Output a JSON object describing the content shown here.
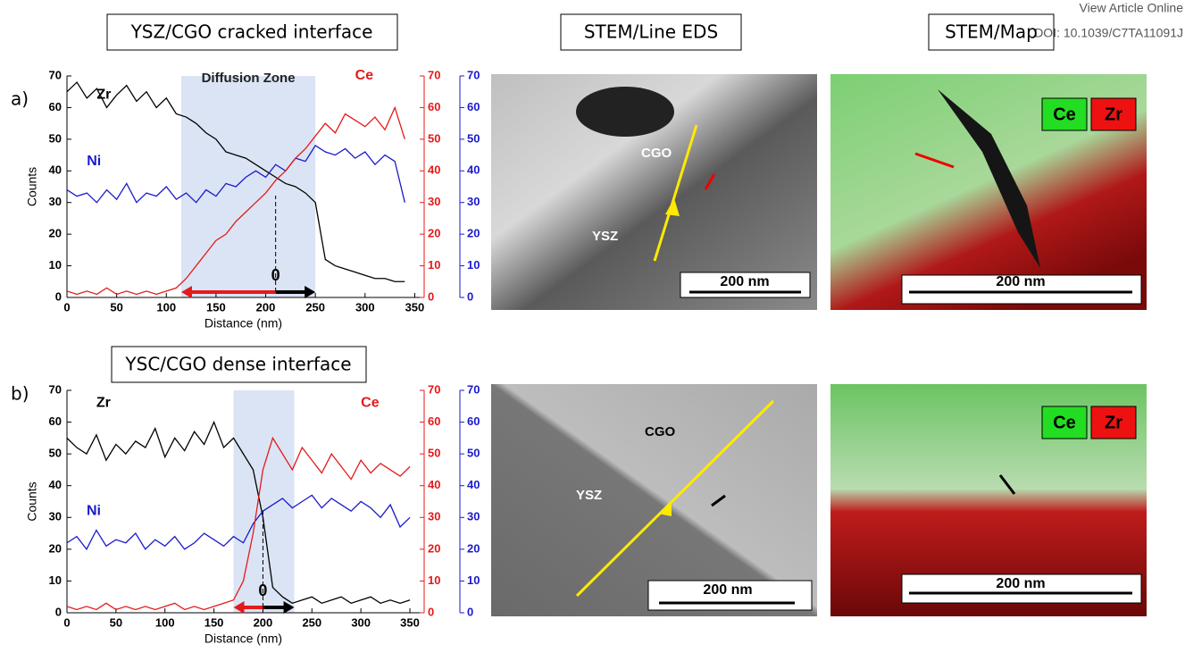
{
  "header": {
    "view": "View Article Online",
    "doi": "DOI: 10.1039/C7TA11091J"
  },
  "columns": {
    "line_eds": "STEM/Line EDS",
    "map": "STEM/Map"
  },
  "rows": [
    {
      "label": "a)",
      "title": "YSZ/CGO cracked interface"
    },
    {
      "label": "b)",
      "title": "YSC/CGO dense interface"
    }
  ],
  "images": {
    "cgo": "CGO",
    "ysz": "YSZ",
    "scale": "200 nm",
    "ce": "Ce",
    "zr": "Zr"
  },
  "chart_data": [
    {
      "type": "line",
      "xlabel": "Distance (nm)",
      "ylabel": "Counts",
      "xlim": [
        0,
        355
      ],
      "xticks": [
        0,
        50,
        100,
        150,
        200,
        250,
        300,
        350
      ],
      "ylim": [
        0,
        70
      ],
      "yticks": [
        0,
        10,
        20,
        30,
        40,
        50,
        60,
        70
      ],
      "y2lim": [
        0,
        70
      ],
      "y2ticks": [
        0,
        10,
        20,
        30,
        40,
        50,
        60,
        70
      ],
      "y3lim": [
        0,
        70
      ],
      "y3ticks": [
        0,
        10,
        20,
        30,
        40,
        50,
        60,
        70
      ],
      "zone": "Diffusion Zone",
      "zero": "0",
      "shade": [
        115,
        250
      ],
      "zero_x": 210,
      "x": [
        0,
        10,
        20,
        30,
        40,
        50,
        60,
        70,
        80,
        90,
        100,
        110,
        120,
        130,
        140,
        150,
        160,
        170,
        180,
        190,
        200,
        210,
        220,
        230,
        240,
        250,
        260,
        270,
        280,
        290,
        300,
        310,
        320,
        330,
        340
      ],
      "series": [
        {
          "name": "Zr",
          "color": "#000000",
          "values": [
            65,
            68,
            63,
            66,
            60,
            64,
            67,
            62,
            65,
            60,
            63,
            58,
            57,
            55,
            52,
            50,
            46,
            45,
            44,
            42,
            40,
            38,
            36,
            35,
            33,
            30,
            12,
            10,
            9,
            8,
            7,
            6,
            6,
            5,
            5
          ]
        },
        {
          "name": "Ni",
          "color": "#1a1acc",
          "axis": "y3",
          "values": [
            34,
            32,
            33,
            30,
            34,
            31,
            36,
            30,
            33,
            32,
            35,
            31,
            33,
            30,
            34,
            32,
            36,
            35,
            38,
            40,
            38,
            42,
            40,
            44,
            43,
            48,
            46,
            45,
            47,
            44,
            46,
            42,
            45,
            43,
            30
          ]
        },
        {
          "name": "Ce",
          "color": "#e41a1a",
          "axis": "y2",
          "values": [
            2,
            1,
            2,
            1,
            3,
            1,
            2,
            1,
            2,
            1,
            2,
            3,
            6,
            10,
            14,
            18,
            20,
            24,
            27,
            30,
            33,
            37,
            40,
            44,
            47,
            51,
            55,
            52,
            58,
            56,
            54,
            57,
            53,
            60,
            50
          ]
        }
      ]
    },
    {
      "type": "line",
      "xlabel": "Distance (nm)",
      "ylabel": "Counts",
      "xlim": [
        0,
        360
      ],
      "xticks": [
        0,
        50,
        100,
        150,
        200,
        250,
        300,
        350
      ],
      "ylim": [
        0,
        70
      ],
      "yticks": [
        0,
        10,
        20,
        30,
        40,
        50,
        60,
        70
      ],
      "y2lim": [
        0,
        70
      ],
      "y2ticks": [
        0,
        10,
        20,
        30,
        40,
        50,
        60,
        70
      ],
      "y3lim": [
        0,
        70
      ],
      "y3ticks": [
        0,
        10,
        20,
        30,
        40,
        50,
        60,
        70
      ],
      "zero": "0",
      "shade": [
        170,
        232
      ],
      "zero_x": 200,
      "x": [
        0,
        10,
        20,
        30,
        40,
        50,
        60,
        70,
        80,
        90,
        100,
        110,
        120,
        130,
        140,
        150,
        160,
        170,
        180,
        190,
        200,
        210,
        220,
        230,
        240,
        250,
        260,
        270,
        280,
        290,
        300,
        310,
        320,
        330,
        340,
        350
      ],
      "series": [
        {
          "name": "Zr",
          "color": "#000000",
          "values": [
            55,
            52,
            50,
            56,
            48,
            53,
            50,
            54,
            52,
            58,
            49,
            55,
            51,
            57,
            53,
            60,
            52,
            55,
            50,
            45,
            30,
            8,
            5,
            3,
            4,
            5,
            3,
            4,
            5,
            3,
            4,
            5,
            3,
            4,
            3,
            4
          ]
        },
        {
          "name": "Ni",
          "color": "#1a1acc",
          "axis": "y3",
          "values": [
            22,
            24,
            20,
            26,
            21,
            23,
            22,
            25,
            20,
            23,
            21,
            24,
            20,
            22,
            25,
            23,
            21,
            24,
            22,
            28,
            32,
            34,
            36,
            33,
            35,
            37,
            33,
            36,
            34,
            32,
            35,
            33,
            30,
            34,
            27,
            30
          ]
        },
        {
          "name": "Ce",
          "color": "#e41a1a",
          "axis": "y2",
          "values": [
            2,
            1,
            2,
            1,
            3,
            1,
            2,
            1,
            2,
            1,
            2,
            3,
            1,
            2,
            1,
            2,
            3,
            4,
            10,
            25,
            45,
            55,
            50,
            45,
            52,
            48,
            44,
            50,
            46,
            42,
            48,
            44,
            47,
            45,
            43,
            46
          ]
        }
      ]
    }
  ]
}
